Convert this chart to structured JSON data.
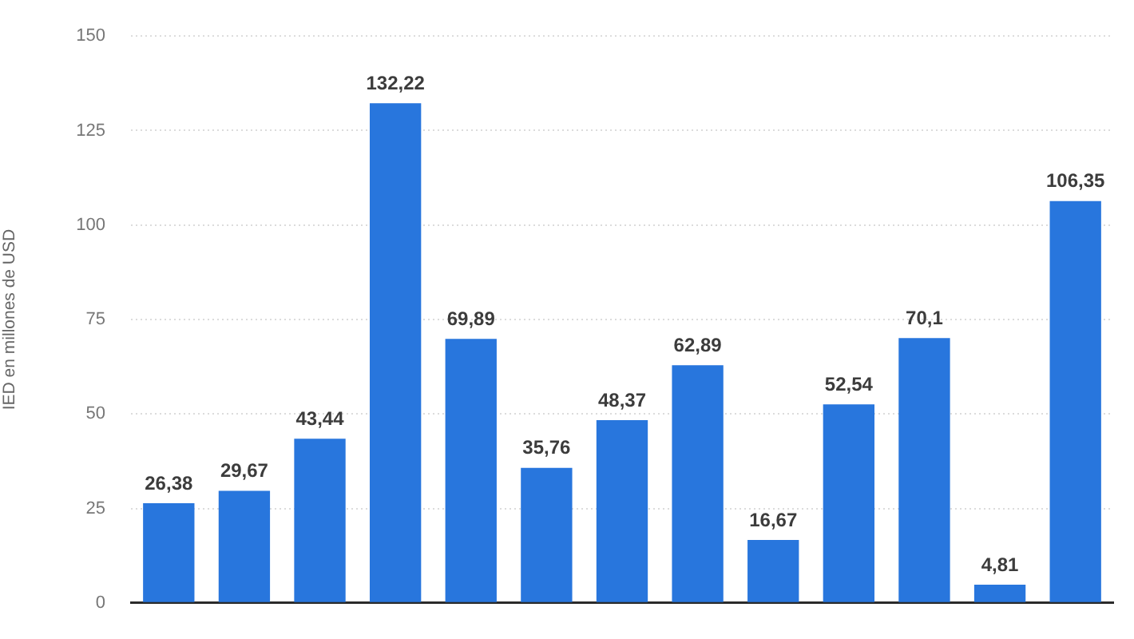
{
  "chart_data": {
    "type": "bar",
    "ylabel": "IED en millones de USD",
    "categories": [
      null,
      null,
      null,
      null,
      null,
      null,
      null,
      null,
      null,
      null,
      null,
      null,
      null
    ],
    "values": [
      26.38,
      29.67,
      43.44,
      132.22,
      69.89,
      35.76,
      48.37,
      62.89,
      16.67,
      52.54,
      70.1,
      4.81,
      106.35
    ],
    "value_labels": [
      "26,38",
      "29,67",
      "43,44",
      "132,22",
      "69,89",
      "35,76",
      "48,37",
      "62,89",
      "16,67",
      "52,54",
      "70,1",
      "4,81",
      "106,35"
    ],
    "color": "#2876dd",
    "ylim": [
      0,
      150
    ],
    "yticks": [
      0,
      25,
      50,
      75,
      100,
      125,
      150
    ],
    "grid": "y",
    "tick_labels": "y"
  }
}
